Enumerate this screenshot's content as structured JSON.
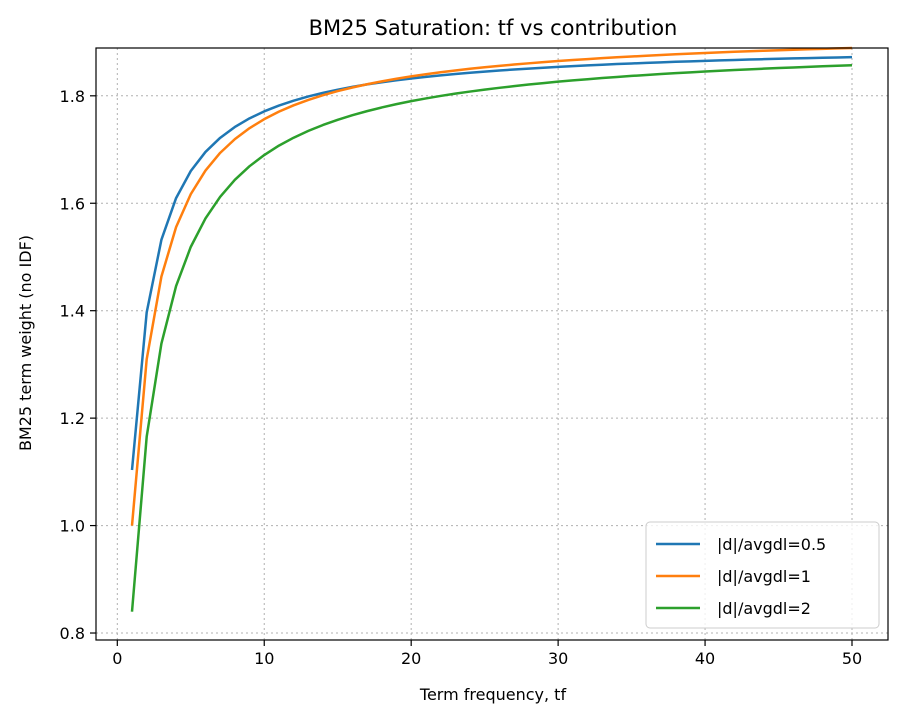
{
  "chart_data": {
    "type": "line",
    "title": "BM25 Saturation: tf vs contribution",
    "xlabel": "Term frequency, tf",
    "ylabel": "BM25 term weight (no IDF)",
    "xlim": [
      -1.45,
      52.45
    ],
    "ylim": [
      0.787,
      1.889
    ],
    "xticks": [
      0,
      10,
      20,
      30,
      40,
      50
    ],
    "xtick_labels": [
      "0",
      "10",
      "20",
      "30",
      "40",
      "50"
    ],
    "yticks": [
      0.8,
      1.0,
      1.2,
      1.4,
      1.6,
      1.8
    ],
    "ytick_labels": [
      "0.8",
      "1.0",
      "1.2",
      "1.4",
      "1.6",
      "1.8"
    ],
    "grid": true,
    "legend_position": "lower right",
    "x": [
      1,
      2,
      3,
      4,
      5,
      6,
      7,
      8,
      9,
      10,
      11,
      12,
      13,
      14,
      15,
      16,
      17,
      18,
      19,
      20,
      21,
      22,
      23,
      24,
      25,
      26,
      27,
      28,
      29,
      30,
      31,
      32,
      33,
      34,
      35,
      36,
      37,
      38,
      39,
      40,
      41,
      42,
      43,
      44,
      45,
      46,
      47,
      48,
      49,
      50
    ],
    "series": [
      {
        "name": "|d|/avgdl=0.5",
        "color": "#1f77b4",
        "values": [
          1.1034,
          1.3968,
          1.5319,
          1.6096,
          1.66,
          1.6955,
          1.7218,
          1.742,
          1.7581,
          1.7711,
          1.7819,
          1.791,
          1.7988,
          1.8055,
          1.8114,
          1.8166,
          1.8212,
          1.8253,
          1.829,
          1.8323,
          1.8353,
          1.8381,
          1.8406,
          1.843,
          1.8451,
          1.8471,
          1.849,
          1.8507,
          1.8523,
          1.8538,
          1.8553,
          1.8566,
          1.8579,
          1.8591,
          1.8602,
          1.8613,
          1.8623,
          1.8633,
          1.8642,
          1.8651,
          1.8659,
          1.8667,
          1.8675,
          1.8682,
          1.8689,
          1.8696,
          1.8702,
          1.8708,
          1.8714,
          1.872
        ]
      },
      {
        "name": "|d|/avgdl=1",
        "color": "#ff7f0e",
        "values": [
          1.0,
          1.3095,
          1.4634,
          1.5556,
          1.617,
          1.6609,
          1.6938,
          1.7194,
          1.7398,
          1.7566,
          1.7705,
          1.7823,
          1.7924,
          1.8011,
          1.8088,
          1.8155,
          1.8215,
          1.8269,
          1.8318,
          1.8362,
          1.8402,
          1.8438,
          1.8472,
          1.8503,
          1.8531,
          1.8558,
          1.8582,
          1.8605,
          1.8627,
          1.8647,
          1.8666,
          1.8684,
          1.8701,
          1.8717,
          1.8732,
          1.8746,
          1.876,
          1.8773,
          1.8785,
          1.8797,
          1.8808,
          1.8819,
          1.8829,
          1.8839,
          1.8848,
          1.8857,
          1.8866,
          1.8874,
          1.8882,
          1.889
        ]
      },
      {
        "name": "|d|/avgdl=2",
        "color": "#2ca02c",
        "values": [
          0.8397,
          1.1654,
          1.3385,
          1.4458,
          1.5188,
          1.5718,
          1.612,
          1.6436,
          1.669,
          1.6898,
          1.7073,
          1.722,
          1.7347,
          1.7457,
          1.7554,
          1.7639,
          1.7715,
          1.7783,
          1.7845,
          1.7901,
          1.7951,
          1.7998,
          1.804,
          1.8079,
          1.8116,
          1.8149,
          1.818,
          1.821,
          1.8237,
          1.8263,
          1.8287,
          1.8309,
          1.8331,
          1.8351,
          1.837,
          1.8388,
          1.8405,
          1.8422,
          1.8437,
          1.8452,
          1.8466,
          1.848,
          1.8493,
          1.8505,
          1.8517,
          1.8528,
          1.8539,
          1.855,
          1.856,
          1.857
        ]
      }
    ]
  }
}
